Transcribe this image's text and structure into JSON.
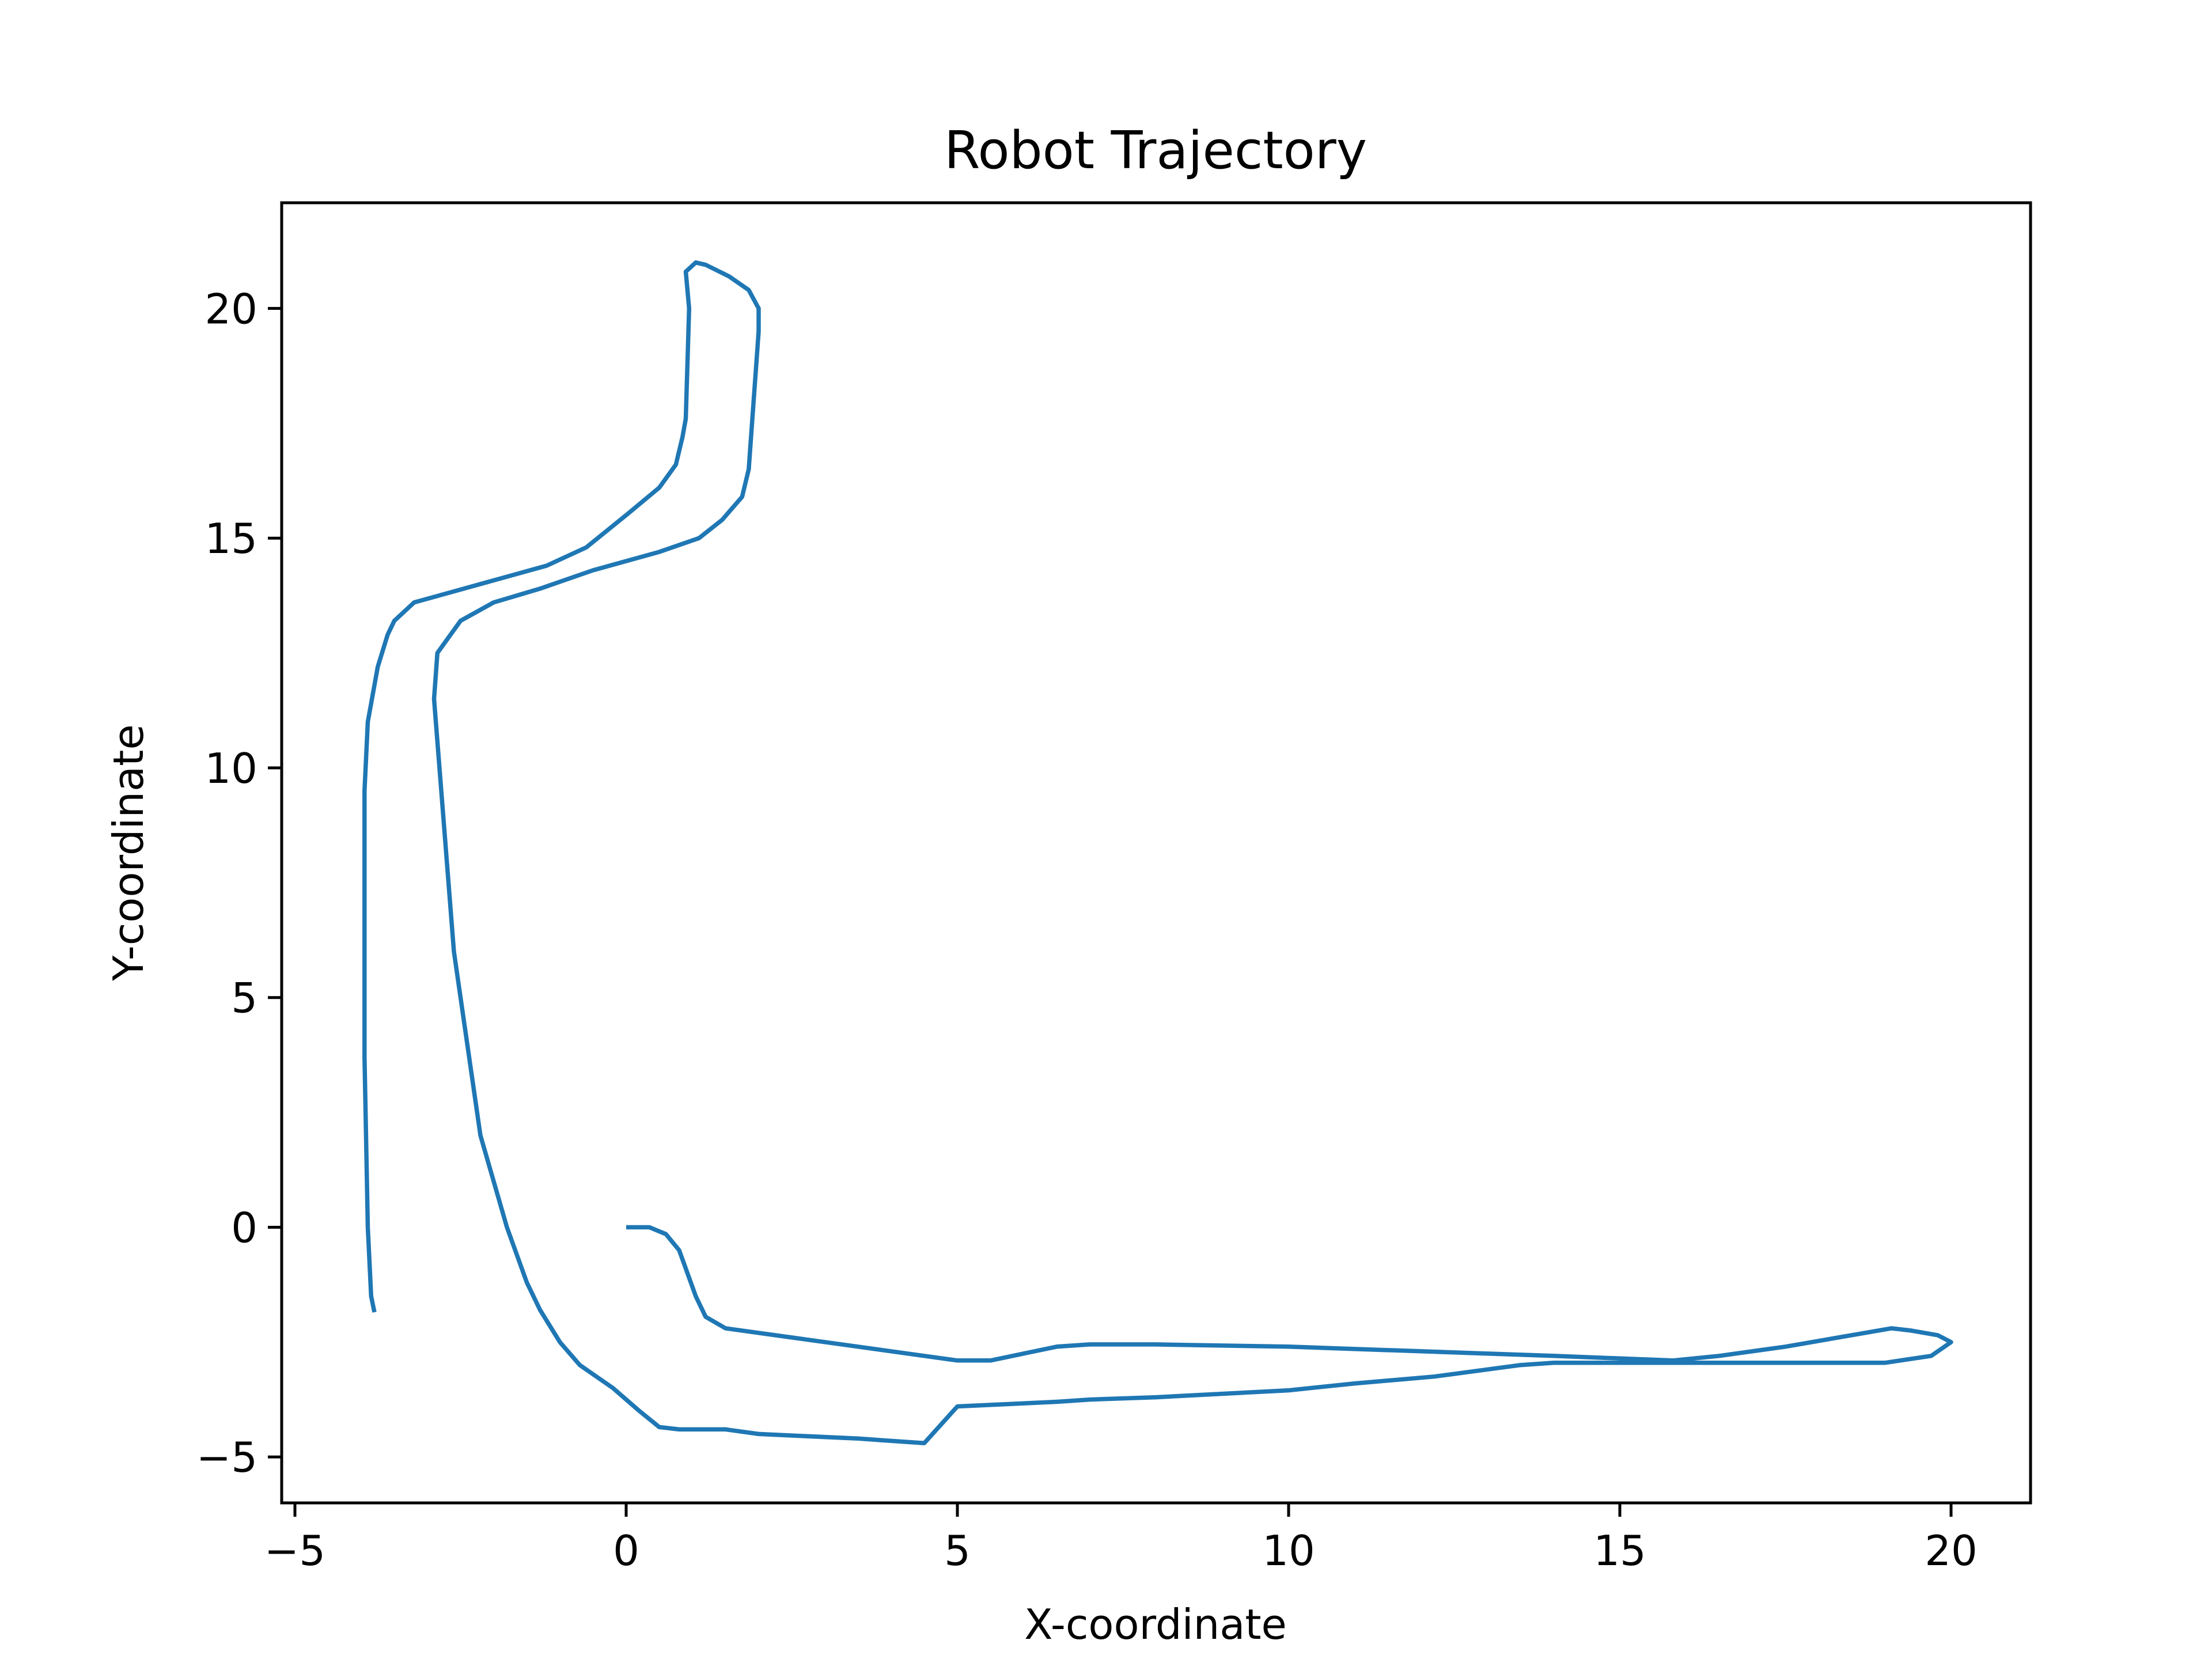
{
  "chart_data": {
    "type": "line",
    "title": "Robot Trajectory",
    "xlabel": "X-coordinate",
    "ylabel": "Y-coordinate",
    "xlim": [
      -5.2,
      21.2
    ],
    "ylim": [
      -6.0,
      22.3
    ],
    "xticks": [
      -5,
      0,
      5,
      10,
      15,
      20
    ],
    "xtick_labels": [
      "−5",
      "0",
      "5",
      "10",
      "15",
      "20"
    ],
    "yticks": [
      -5,
      0,
      5,
      10,
      15,
      20
    ],
    "ytick_labels": [
      "−5",
      "0",
      "5",
      "10",
      "15",
      "20"
    ],
    "grid": false,
    "legend": null,
    "line_color": "#1f77b4",
    "series": [
      {
        "x": [
          0,
          0.35,
          0.6,
          0.8,
          0.95,
          1.05,
          1.2,
          1.5,
          2.5,
          3.5,
          4.5,
          5.0,
          5.5,
          6.0,
          6.5,
          7.0,
          8.0,
          10.0,
          12.0,
          14.0,
          15.8,
          16.5,
          17.5,
          19.1,
          19.4,
          19.8,
          20.0,
          19.7,
          19.0,
          17.0,
          15.0,
          14.2,
          14.0,
          13.5,
          12.2,
          11.0,
          10.0,
          8.0,
          7.0,
          6.5,
          5.0,
          4.5,
          3.5,
          2.0,
          1.5,
          0.8,
          0.5,
          0.2,
          -0.2,
          -0.5,
          -0.7,
          -1.0,
          -1.3,
          -1.4,
          -1.5,
          -1.8,
          -2.2,
          -2.6,
          -2.9,
          -2.85,
          -2.5,
          -2.0,
          -1.3,
          -0.5,
          0.5,
          1.1,
          1.45,
          1.75,
          1.85,
          1.9,
          2.0,
          2.0,
          1.85,
          1.55,
          1.2,
          1.05,
          0.9,
          0.95,
          0.9,
          0.85,
          0.75,
          0.5,
          0.0,
          -0.6,
          -1.2,
          -2.2,
          -3.2,
          -3.5,
          -3.6,
          -3.75,
          -3.9,
          -3.95,
          -3.95,
          -3.9,
          -3.85,
          -3.8
        ],
        "y": [
          0,
          0,
          -0.15,
          -0.5,
          -1.1,
          -1.5,
          -1.95,
          -2.2,
          -2.4,
          -2.6,
          -2.8,
          -2.9,
          -2.9,
          -2.75,
          -2.6,
          -2.55,
          -2.55,
          -2.6,
          -2.7,
          -2.8,
          -2.9,
          -2.8,
          -2.6,
          -2.2,
          -2.25,
          -2.35,
          -2.5,
          -2.8,
          -2.95,
          -2.95,
          -2.95,
          -2.95,
          -2.95,
          -3.0,
          -3.25,
          -3.4,
          -3.55,
          -3.7,
          -3.75,
          -3.8,
          -3.9,
          -4.7,
          -4.6,
          -4.5,
          -4.4,
          -4.4,
          -4.35,
          -4.0,
          -3.5,
          -3.2,
          -3.0,
          -2.5,
          -1.8,
          -1.5,
          -1.2,
          0.0,
          2.0,
          6.0,
          11.5,
          12.5,
          13.2,
          13.6,
          13.9,
          14.3,
          14.7,
          15.0,
          15.4,
          15.9,
          16.5,
          17.5,
          19.5,
          20.0,
          20.4,
          20.7,
          20.95,
          21.0,
          20.8,
          20.0,
          17.6,
          17.2,
          16.6,
          16.1,
          15.5,
          14.8,
          14.4,
          14.0,
          13.6,
          13.2,
          12.9,
          12.2,
          11.0,
          9.5,
          3.7,
          0.0,
          -1.5,
          -1.85
        ]
      }
    ]
  }
}
